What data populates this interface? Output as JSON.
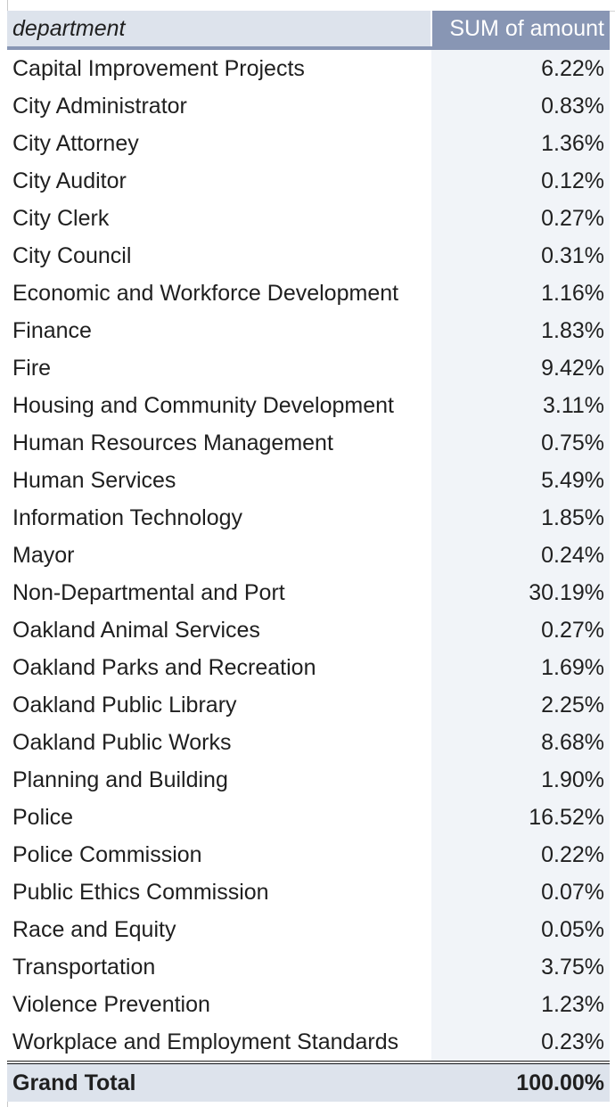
{
  "pivot": {
    "headers": {
      "department": "department",
      "amount": "SUM of amount"
    },
    "rows": [
      {
        "department": "Capital Improvement Projects",
        "amount": "6.22%"
      },
      {
        "department": "City Administrator",
        "amount": "0.83%"
      },
      {
        "department": "City Attorney",
        "amount": "1.36%"
      },
      {
        "department": "City Auditor",
        "amount": "0.12%"
      },
      {
        "department": "City Clerk",
        "amount": "0.27%"
      },
      {
        "department": "City Council",
        "amount": "0.31%"
      },
      {
        "department": "Economic and Workforce Development",
        "amount": "1.16%"
      },
      {
        "department": "Finance",
        "amount": "1.83%"
      },
      {
        "department": "Fire",
        "amount": "9.42%"
      },
      {
        "department": "Housing and Community Development",
        "amount": "3.11%"
      },
      {
        "department": "Human Resources Management",
        "amount": "0.75%"
      },
      {
        "department": "Human Services",
        "amount": "5.49%"
      },
      {
        "department": "Information Technology",
        "amount": "1.85%"
      },
      {
        "department": "Mayor",
        "amount": "0.24%"
      },
      {
        "department": "Non-Departmental and Port",
        "amount": "30.19%"
      },
      {
        "department": "Oakland Animal Services",
        "amount": "0.27%"
      },
      {
        "department": "Oakland Parks and Recreation",
        "amount": "1.69%"
      },
      {
        "department": "Oakland Public Library",
        "amount": "2.25%"
      },
      {
        "department": "Oakland Public Works",
        "amount": "8.68%"
      },
      {
        "department": "Planning and Building",
        "amount": "1.90%"
      },
      {
        "department": "Police",
        "amount": "16.52%"
      },
      {
        "department": "Police Commission",
        "amount": "0.22%"
      },
      {
        "department": "Public Ethics Commission",
        "amount": "0.07%"
      },
      {
        "department": "Race and Equity",
        "amount": "0.05%"
      },
      {
        "department": "Transportation",
        "amount": "3.75%"
      },
      {
        "department": "Violence Prevention",
        "amount": "1.23%"
      },
      {
        "department": "Workplace and Employment Standards",
        "amount": "0.23%"
      }
    ],
    "total": {
      "label": "Grand Total",
      "amount": "100.00%"
    },
    "colors": {
      "header_accent": "#8896b4",
      "header_light": "#dde3ec",
      "value_column_bg": "#f1f4f8"
    }
  }
}
